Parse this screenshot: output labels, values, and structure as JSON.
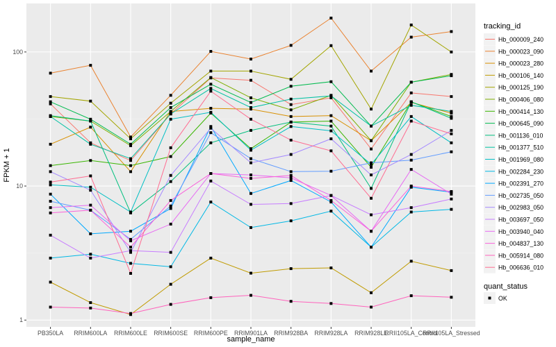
{
  "chart_data": {
    "type": "line",
    "title": "",
    "xlabel": "sample_name",
    "ylabel": "FPKM + 1",
    "yscale": "log10",
    "ylim": [
      0.89,
      230
    ],
    "yticks": [
      1,
      10,
      100
    ],
    "ytick_labels": [
      "1",
      "10",
      "100"
    ],
    "grid": true,
    "legend_position": "right",
    "categories": [
      "PB350LA",
      "RRIM600LA",
      "RRIM600LE",
      "RRIM600SE",
      "RRIM600PE",
      "RRIM901LA",
      "RRIM928BA",
      "RRIM928LA",
      "RRIM928LE",
      "RRII105LA_Control",
      "RRII105LA_Stressed"
    ],
    "legend_title": "tracking_id",
    "series": [
      {
        "name": "Hb_000009_240",
        "color": "#F8766D",
        "values": [
          41.0,
          21.0,
          15.5,
          34.5,
          64.0,
          61.5,
          40.5,
          45.5,
          18.9,
          49.5,
          46.5
        ]
      },
      {
        "name": "Hb_000023_090",
        "color": "#EA8331",
        "values": [
          69.5,
          79.5,
          23.2,
          47.5,
          101.0,
          88.5,
          112.0,
          179.0,
          72.0,
          129.0,
          142.0
        ]
      },
      {
        "name": "Hb_000023_280",
        "color": "#D89000",
        "values": [
          20.5,
          27.5,
          12.8,
          36.0,
          38.0,
          37.5,
          33.0,
          33.5,
          21.8,
          42.0,
          35.0
        ]
      },
      {
        "name": "Hb_000106_140",
        "color": "#C09B00",
        "values": [
          1.92,
          1.35,
          1.1,
          1.85,
          2.9,
          2.24,
          2.42,
          2.45,
          1.6,
          2.75,
          2.34
        ]
      },
      {
        "name": "Hb_000125_190",
        "color": "#A3A500",
        "values": [
          46.5,
          43.0,
          22.5,
          41.5,
          72.0,
          72.0,
          62.5,
          111.5,
          37.5,
          159.0,
          100.0
        ]
      },
      {
        "name": "Hb_000406_080",
        "color": "#7CAE00",
        "values": [
          33.0,
          30.5,
          20.0,
          36.0,
          64.5,
          45.5,
          37.0,
          47.5,
          21.8,
          59.5,
          68.0
        ]
      },
      {
        "name": "Hb_000414_130",
        "color": "#39B600",
        "values": [
          14.2,
          15.5,
          14.2,
          16.6,
          35.0,
          19.0,
          30.0,
          30.5,
          13.8,
          42.5,
          33.0
        ]
      },
      {
        "name": "Hb_000645_090",
        "color": "#00BB4E",
        "values": [
          42.5,
          31.5,
          20.5,
          38.5,
          57.5,
          42.0,
          55.5,
          60.0,
          28.0,
          59.5,
          66.5
        ]
      },
      {
        "name": "Hb_001136_010",
        "color": "#00BF7D",
        "values": [
          33.5,
          30.5,
          6.3,
          10.8,
          21.0,
          26.0,
          30.0,
          28.0,
          9.6,
          42.5,
          32.0
        ]
      },
      {
        "name": "Hb_001377_510",
        "color": "#00C1A3",
        "values": [
          33.0,
          20.5,
          16.0,
          34.5,
          53.5,
          38.5,
          44.5,
          47.0,
          28.0,
          40.0,
          36.0
        ]
      },
      {
        "name": "Hb_001969_080",
        "color": "#00BFC4",
        "values": [
          10.2,
          9.8,
          6.4,
          31.5,
          35.5,
          18.5,
          27.8,
          25.8,
          14.5,
          33.0,
          21.0
        ]
      },
      {
        "name": "Hb_002284_230",
        "color": "#00B8E5",
        "values": [
          2.9,
          3.1,
          2.65,
          2.5,
          7.6,
          4.9,
          5.5,
          6.5,
          3.5,
          6.4,
          6.7
        ]
      },
      {
        "name": "Hb_002391_270",
        "color": "#00A9FF",
        "values": [
          8.7,
          4.4,
          4.6,
          6.8,
          27.8,
          8.8,
          11.0,
          7.6,
          3.5,
          9.8,
          9.0
        ]
      },
      {
        "name": "Hb_002735_050",
        "color": "#619CFF",
        "values": [
          7.7,
          6.6,
          4.0,
          7.1,
          25.0,
          16.0,
          12.8,
          12.9,
          14.9,
          15.6,
          18.0
        ]
      },
      {
        "name": "Hb_002983_050",
        "color": "#A58AFF",
        "values": [
          12.8,
          9.3,
          3.2,
          12.0,
          27.0,
          14.9,
          17.2,
          22.5,
          12.1,
          17.2,
          26.0
        ]
      },
      {
        "name": "Hb_003697_050",
        "color": "#C77CFF",
        "values": [
          4.3,
          2.9,
          3.3,
          3.2,
          10.9,
          7.3,
          7.4,
          8.5,
          6.1,
          6.9,
          8.0
        ]
      },
      {
        "name": "Hb_003940_040",
        "color": "#E76BF3",
        "values": [
          6.9,
          7.2,
          3.9,
          5.2,
          12.4,
          12.1,
          11.5,
          8.5,
          4.6,
          13.3,
          8.7
        ]
      },
      {
        "name": "Hb_004837_130",
        "color": "#FA62DB",
        "values": [
          6.3,
          6.6,
          3.5,
          7.8,
          12.4,
          11.4,
          12.0,
          7.8,
          4.6,
          10.0,
          9.1
        ]
      },
      {
        "name": "Hb_005914_080",
        "color": "#FF62BC",
        "values": [
          1.25,
          1.23,
          1.12,
          1.31,
          1.47,
          1.53,
          1.38,
          1.33,
          1.25,
          1.52,
          1.48
        ]
      },
      {
        "name": "Hb_006636_010",
        "color": "#FF6C91",
        "values": [
          10.7,
          11.9,
          2.23,
          19.3,
          51.0,
          31.5,
          22.0,
          18.3,
          8.1,
          30.5,
          24.5
        ]
      }
    ],
    "legend2_title": "quant_status",
    "legend2_entries": [
      {
        "label": "OK",
        "shape": "square-point",
        "color": "#000000"
      }
    ]
  }
}
